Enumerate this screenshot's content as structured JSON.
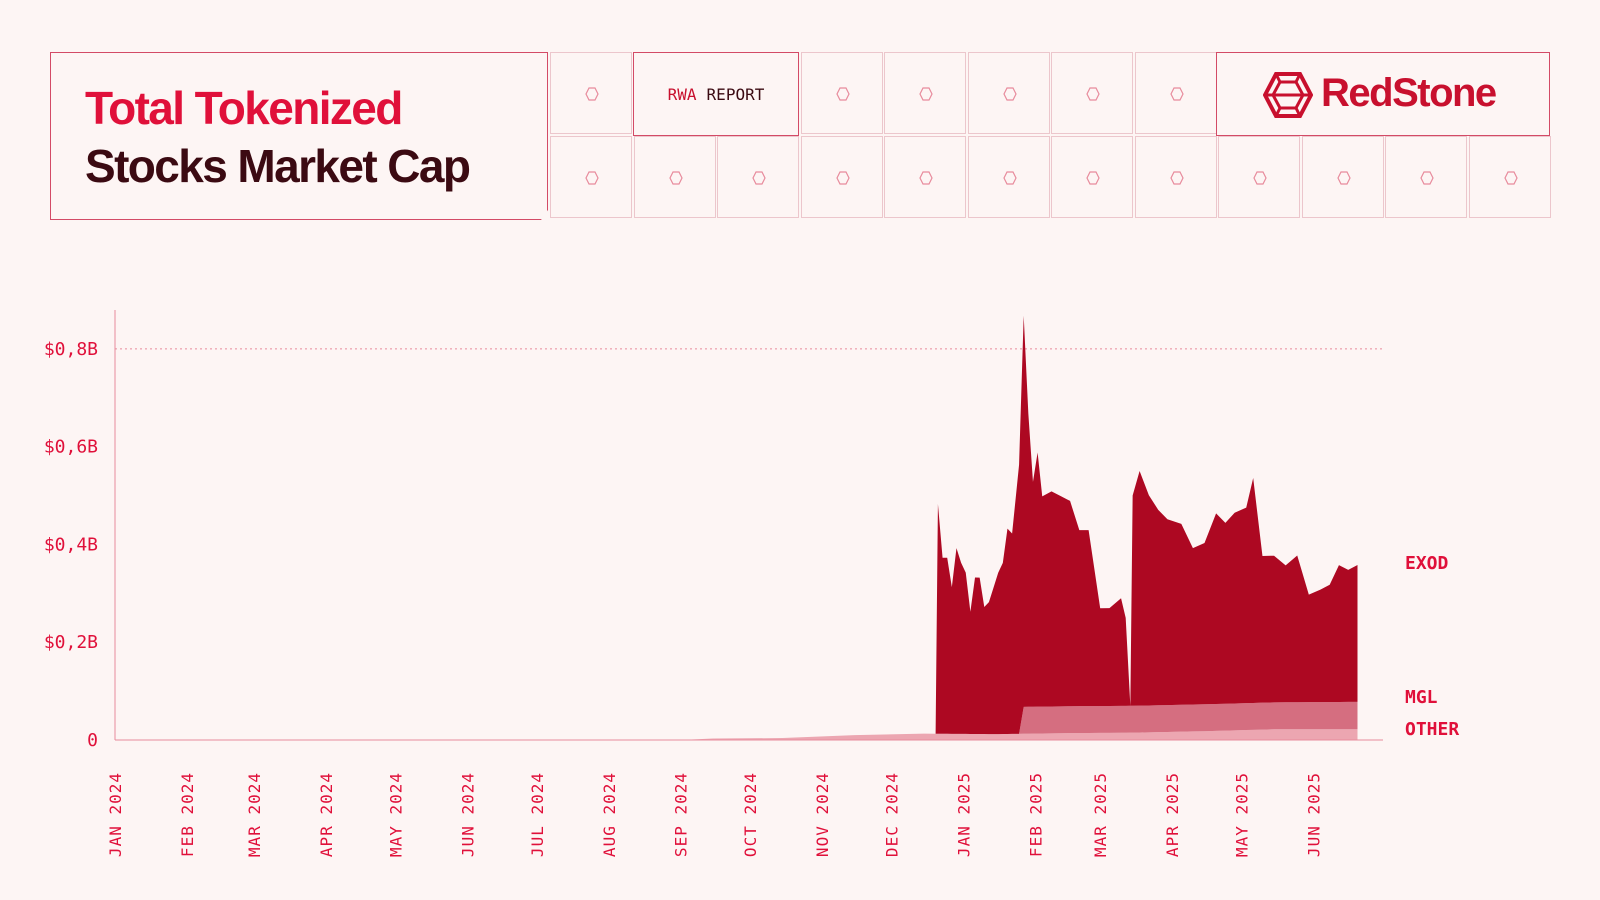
{
  "header": {
    "title_line1": "Total Tokenized",
    "title_line2": "Stocks Market Cap",
    "tag_prefix": "RWA",
    "tag_suffix": "REPORT",
    "brand": "RedStone"
  },
  "colors": {
    "background": "#fdf5f4",
    "accent": "#e0103a",
    "dark": "#3b0a12",
    "exod": "#ad0822",
    "mgl": "#d56e80",
    "other": "#eca6b1"
  },
  "chart_data": {
    "type": "area",
    "stacked": true,
    "title": "Total Tokenized Stocks Market Cap",
    "xlabel": "",
    "ylabel": "",
    "x_range": [
      "2024-01-01",
      "2025-07-01"
    ],
    "ylim": [
      0,
      0.9
    ],
    "y_unit": "B USD",
    "y_ticks": [
      {
        "value": 0,
        "label": "0"
      },
      {
        "value": 0.2,
        "label": "$0,2B"
      },
      {
        "value": 0.4,
        "label": "$0,4B"
      },
      {
        "value": 0.6,
        "label": "$0,6B"
      },
      {
        "value": 0.8,
        "label": "$0,8B"
      }
    ],
    "x_ticks": [
      {
        "date": "2024-01-01",
        "label": "JAN 2024"
      },
      {
        "date": "2024-02-01",
        "label": "FEB 2024"
      },
      {
        "date": "2024-03-01",
        "label": "MAR 2024"
      },
      {
        "date": "2024-04-01",
        "label": "APR 2024"
      },
      {
        "date": "2024-05-01",
        "label": "MAY 2024"
      },
      {
        "date": "2024-06-01",
        "label": "JUN 2024"
      },
      {
        "date": "2024-07-01",
        "label": "JUL 2024"
      },
      {
        "date": "2024-08-01",
        "label": "AUG 2024"
      },
      {
        "date": "2024-09-01",
        "label": "SEP 2024"
      },
      {
        "date": "2024-10-01",
        "label": "OCT 2024"
      },
      {
        "date": "2024-11-01",
        "label": "NOV 2024"
      },
      {
        "date": "2024-12-01",
        "label": "DEC 2024"
      },
      {
        "date": "2025-01-01",
        "label": "JAN 2025"
      },
      {
        "date": "2025-02-01",
        "label": "FEB 2025"
      },
      {
        "date": "2025-03-01",
        "label": "MAR 2025"
      },
      {
        "date": "2025-04-01",
        "label": "APR 2025"
      },
      {
        "date": "2025-05-01",
        "label": "MAY 2025"
      },
      {
        "date": "2025-06-01",
        "label": "JUN 2025"
      }
    ],
    "gridline": {
      "value": 0.8,
      "style": "dotted"
    },
    "series": [
      {
        "name": "OTHER",
        "color": "#eca6b1",
        "points": [
          [
            "2024-01-01",
            0
          ],
          [
            "2024-09-01",
            0
          ],
          [
            "2024-09-15",
            0.003
          ],
          [
            "2024-10-15",
            0.004
          ],
          [
            "2024-11-15",
            0.01
          ],
          [
            "2024-12-15",
            0.013
          ],
          [
            "2025-01-15",
            0.012
          ],
          [
            "2025-02-15",
            0.014
          ],
          [
            "2025-03-15",
            0.015
          ],
          [
            "2025-04-15",
            0.018
          ],
          [
            "2025-05-15",
            0.022
          ],
          [
            "2025-06-20",
            0.022
          ]
        ]
      },
      {
        "name": "MGL",
        "color": "#d56e80",
        "points": [
          [
            "2024-01-01",
            0
          ],
          [
            "2025-01-25",
            0
          ],
          [
            "2025-01-27",
            0.055
          ],
          [
            "2025-03-15",
            0.055
          ],
          [
            "2025-04-15",
            0.055
          ],
          [
            "2025-05-15",
            0.055
          ],
          [
            "2025-06-20",
            0.056
          ]
        ]
      },
      {
        "name": "EXOD",
        "color": "#ad0822",
        "points": [
          [
            "2024-01-01",
            0
          ],
          [
            "2024-12-20",
            0
          ],
          [
            "2024-12-21",
            0.47
          ],
          [
            "2024-12-23",
            0.36
          ],
          [
            "2024-12-25",
            0.36
          ],
          [
            "2024-12-27",
            0.3
          ],
          [
            "2024-12-29",
            0.38
          ],
          [
            "2024-12-31",
            0.35
          ],
          [
            "2025-01-02",
            0.33
          ],
          [
            "2025-01-04",
            0.25
          ],
          [
            "2025-01-06",
            0.32
          ],
          [
            "2025-01-08",
            0.32
          ],
          [
            "2025-01-10",
            0.26
          ],
          [
            "2025-01-12",
            0.27
          ],
          [
            "2025-01-14",
            0.3
          ],
          [
            "2025-01-16",
            0.33
          ],
          [
            "2025-01-18",
            0.35
          ],
          [
            "2025-01-20",
            0.42
          ],
          [
            "2025-01-22",
            0.41
          ],
          [
            "2025-01-25",
            0.55
          ],
          [
            "2025-01-27",
            0.8
          ],
          [
            "2025-01-29",
            0.6
          ],
          [
            "2025-01-31",
            0.46
          ],
          [
            "2025-02-02",
            0.52
          ],
          [
            "2025-02-04",
            0.43
          ],
          [
            "2025-02-08",
            0.44
          ],
          [
            "2025-02-12",
            0.43
          ],
          [
            "2025-02-16",
            0.42
          ],
          [
            "2025-02-20",
            0.36
          ],
          [
            "2025-02-24",
            0.36
          ],
          [
            "2025-03-01",
            0.2
          ],
          [
            "2025-03-05",
            0.2
          ],
          [
            "2025-03-10",
            0.22
          ],
          [
            "2025-03-12",
            0.18
          ],
          [
            "2025-03-14",
            0.0
          ],
          [
            "2025-03-15",
            0.43
          ],
          [
            "2025-03-18",
            0.48
          ],
          [
            "2025-03-22",
            0.43
          ],
          [
            "2025-03-26",
            0.4
          ],
          [
            "2025-03-30",
            0.38
          ],
          [
            "2025-04-05",
            0.37
          ],
          [
            "2025-04-10",
            0.32
          ],
          [
            "2025-04-15",
            0.33
          ],
          [
            "2025-04-20",
            0.39
          ],
          [
            "2025-04-24",
            0.37
          ],
          [
            "2025-04-28",
            0.39
          ],
          [
            "2025-05-03",
            0.4
          ],
          [
            "2025-05-06",
            0.46
          ],
          [
            "2025-05-10",
            0.3
          ],
          [
            "2025-05-15",
            0.3
          ],
          [
            "2025-05-20",
            0.28
          ],
          [
            "2025-05-25",
            0.3
          ],
          [
            "2025-05-30",
            0.22
          ],
          [
            "2025-06-04",
            0.23
          ],
          [
            "2025-06-08",
            0.24
          ],
          [
            "2025-06-12",
            0.28
          ],
          [
            "2025-06-16",
            0.27
          ],
          [
            "2025-06-20",
            0.28
          ]
        ]
      }
    ]
  }
}
